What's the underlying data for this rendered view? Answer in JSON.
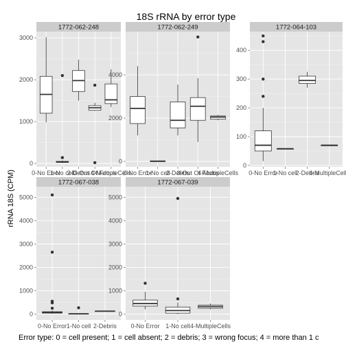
{
  "chart_data": {
    "type": "boxplot",
    "title": "18S rRNA by error type",
    "ylabel": "rRNA 18S (CPM)",
    "xlabel": "Error type: 0 = cell present; 1 = cell absent; 2 = debris; 3 = wrong focus; 4 = more than 1 c",
    "panels": [
      {
        "name": "1772-062-248",
        "ylim": [
          -80,
          3150
        ],
        "yticks": [
          0,
          1000,
          2000,
          3000
        ],
        "categories": [
          "0-No Error",
          "1-No cell",
          "2-Debris",
          "3-Out Of Focus",
          "4-MultipleCells"
        ],
        "boxes": [
          {
            "min": 980,
            "q1": 1200,
            "median": 1650,
            "q3": 2080,
            "max": 3020,
            "outliers": []
          },
          {
            "min": 10,
            "q1": 25,
            "median": 35,
            "q3": 50,
            "max": 70,
            "outliers": [
              140,
              2100
            ]
          },
          {
            "min": 1500,
            "q1": 1720,
            "median": 1980,
            "q3": 2220,
            "max": 2480,
            "outliers": []
          },
          {
            "min": 1260,
            "q1": 1270,
            "median": 1330,
            "q3": 1380,
            "max": 1450,
            "outliers": [
              1870,
              20
            ]
          },
          {
            "min": 1350,
            "q1": 1430,
            "median": 1520,
            "q3": 1900,
            "max": 2250,
            "outliers": []
          }
        ]
      },
      {
        "name": "1772-062-249",
        "ylim": [
          -250,
          6000
        ],
        "yticks": [
          0,
          2000,
          4000
        ],
        "categories": [
          "0-No Error",
          "1-No cell",
          "2-Debris",
          "3-Out Of Focus",
          "4-MultipleCells"
        ],
        "boxes": [
          {
            "min": 1200,
            "q1": 1750,
            "median": 2450,
            "q3": 3000,
            "max": 4400,
            "outliers": []
          },
          {
            "min": 0,
            "q1": 5,
            "median": 10,
            "q3": 20,
            "max": 30,
            "outliers": []
          },
          {
            "min": 1200,
            "q1": 1550,
            "median": 1900,
            "q3": 2750,
            "max": 3550,
            "outliers": []
          },
          {
            "min": 900,
            "q1": 1900,
            "median": 2550,
            "q3": 2950,
            "max": 3850,
            "outliers": [
              5750
            ]
          },
          {
            "min": 1900,
            "q1": 1950,
            "median": 2050,
            "q3": 2100,
            "max": 2150,
            "outliers": []
          }
        ]
      },
      {
        "name": "1772-064-103",
        "ylim": [
          -5,
          465
        ],
        "yticks": [
          0,
          100,
          200,
          300,
          400
        ],
        "categories": [
          "0-No Error",
          "1-No cell",
          "2-Debris",
          "4-MultipleCells"
        ],
        "boxes": [
          {
            "min": 15,
            "q1": 50,
            "median": 70,
            "q3": 120,
            "max": 200,
            "outliers": [
              240,
              300,
              430,
              450
            ]
          },
          {
            "min": 58,
            "q1": 58,
            "median": 58,
            "q3": 58,
            "max": 58,
            "outliers": []
          },
          {
            "min": 270,
            "q1": 285,
            "median": 295,
            "q3": 310,
            "max": 325,
            "outliers": []
          },
          {
            "min": 70,
            "q1": 70,
            "median": 70,
            "q3": 70,
            "max": 70,
            "outliers": []
          }
        ]
      },
      {
        "name": "1772-067-038",
        "ylim": [
          -250,
          5450
        ],
        "yticks": [
          0,
          1000,
          2000,
          3000,
          4000,
          5000
        ],
        "categories": [
          "0-No Error",
          "1-No cell",
          "2-Debris"
        ],
        "boxes": [
          {
            "min": 10,
            "q1": 40,
            "median": 70,
            "q3": 100,
            "max": 150,
            "outliers": [
              250,
              480,
              550,
              2650,
              5100
            ]
          },
          {
            "min": 0,
            "q1": 5,
            "median": 10,
            "q3": 20,
            "max": 40,
            "outliers": [
              270
            ]
          },
          {
            "min": 110,
            "q1": 115,
            "median": 125,
            "q3": 135,
            "max": 140,
            "outliers": []
          }
        ]
      },
      {
        "name": "1772-067-039",
        "ylim": [
          -250,
          5450
        ],
        "yticks": [
          0,
          1000,
          2000,
          3000,
          4000,
          5000
        ],
        "categories": [
          "0-No Error",
          "1-No cell",
          "4-MultipleCells"
        ],
        "boxes": [
          {
            "min": 200,
            "q1": 340,
            "median": 450,
            "q3": 600,
            "max": 950,
            "outliers": [
              1320
            ]
          },
          {
            "min": 0,
            "q1": 40,
            "median": 150,
            "q3": 300,
            "max": 500,
            "outliers": [
              650,
              4950
            ]
          },
          {
            "min": 200,
            "q1": 250,
            "median": 320,
            "q3": 380,
            "max": 450,
            "outliers": []
          }
        ]
      }
    ]
  }
}
